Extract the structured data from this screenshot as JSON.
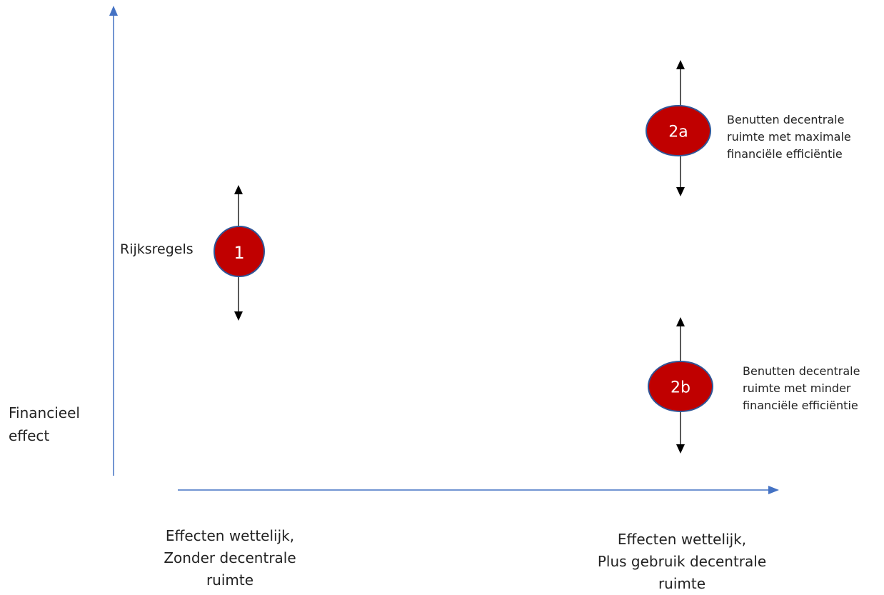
{
  "axes": {
    "y_label": "Financieel\neffect",
    "x_left_label": "Effecten wettelijk,\nZonder decentrale\nruimte",
    "x_right_label": "Effecten wettelijk,\nPlus gebruik decentrale\nruimte",
    "color": "#4472c4"
  },
  "nodes": [
    {
      "id": "1",
      "label": "1",
      "side_label": "Rijksregels",
      "fill": "#c00000",
      "outline": "#2f5597"
    },
    {
      "id": "2a",
      "label": "2a",
      "description": "Benutten decentrale\nruimte met maximale\nfinanciële efficiëntie",
      "fill": "#c00000",
      "outline": "#2f5597"
    },
    {
      "id": "2b",
      "label": "2b",
      "description": "Benutten decentrale\nruimte met minder\nfinanciële efficiëntie",
      "fill": "#c00000",
      "outline": "#2f5597"
    }
  ]
}
